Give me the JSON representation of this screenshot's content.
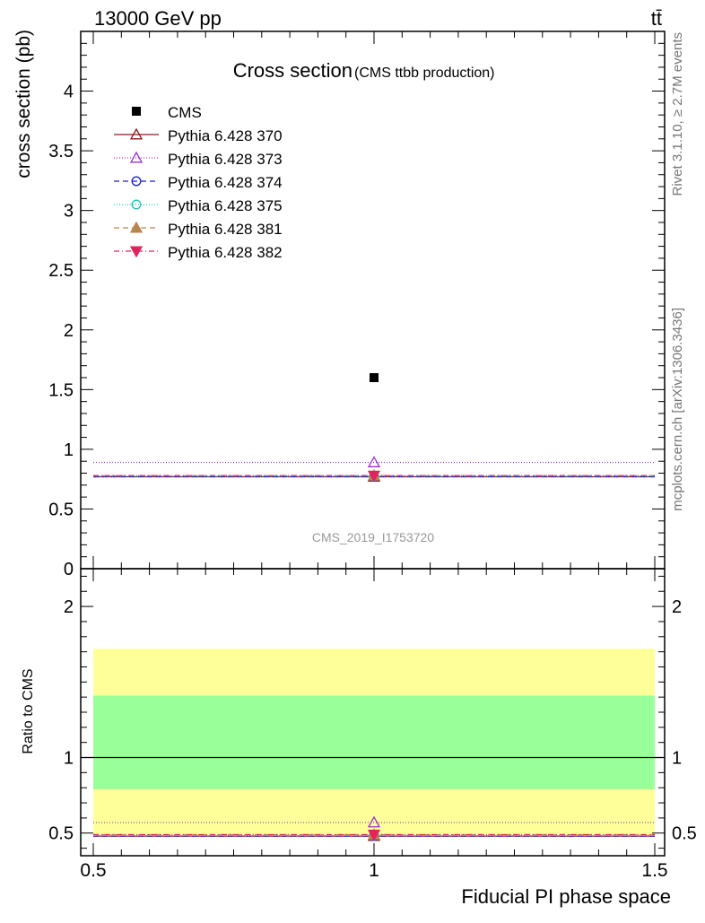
{
  "header": {
    "energy_label": "13000 GeV pp",
    "process_label": "tt̄"
  },
  "side_labels": {
    "rivet": "Rivet 3.1.10, ≥ 2.7M events",
    "mcplots": "mcplots.cern.ch [arXiv:1306.3436]"
  },
  "chart_data": [
    {
      "type": "scatter",
      "title": "Cross section",
      "subtitle": "(CMS ttbb production)",
      "ylabel": "cross section (pb)",
      "ylim": [
        0,
        4.5
      ],
      "xlim": [
        0.5,
        1.5
      ],
      "yticks": [
        0,
        0.5,
        1,
        1.5,
        2,
        2.5,
        3,
        3.5,
        4
      ],
      "ytick_labels": [
        "0",
        "0.5",
        "1",
        "1.5",
        "2",
        "2.5",
        "3",
        "3.5",
        "4"
      ],
      "watermark": "CMS_2019_I1753720",
      "legend_position": "top-left",
      "data_point": {
        "name": "CMS",
        "x": 1,
        "y": 1.6,
        "color": "#000000"
      },
      "series": [
        {
          "name": "Pythia 6.428 370",
          "x": [
            0.5,
            1.5
          ],
          "y": 0.77,
          "color": "#8b1a1a",
          "dash": "",
          "marker": "triangle-open"
        },
        {
          "name": "Pythia 6.428 373",
          "x": [
            0.5,
            1.5
          ],
          "y": 0.89,
          "color": "#9b30d0",
          "dash": "1,2",
          "marker": "triangle-open"
        },
        {
          "name": "Pythia 6.428 374",
          "x": [
            0.5,
            1.5
          ],
          "y": 0.77,
          "color": "#1f1fcc",
          "dash": "6,4",
          "marker": "circle-open"
        },
        {
          "name": "Pythia 6.428 375",
          "x": [
            0.5,
            1.5
          ],
          "y": 0.775,
          "color": "#1ac8b4",
          "dash": "1,2",
          "marker": "circle-open"
        },
        {
          "name": "Pythia 6.428 381",
          "x": [
            0.5,
            1.5
          ],
          "y": 0.78,
          "color": "#b8864b",
          "dash": "6,4",
          "marker": "triangle-filled"
        },
        {
          "name": "Pythia 6.428 382",
          "x": [
            0.5,
            1.5
          ],
          "y": 0.78,
          "color": "#e0245e",
          "dash": "6,3,1,3",
          "marker": "triangle-down-filled"
        }
      ]
    },
    {
      "type": "scatter",
      "ylabel": "Ratio to CMS",
      "xlabel": "Fiducial PI phase space",
      "ylim": [
        0.35,
        2.25
      ],
      "xlim": [
        0.5,
        1.5
      ],
      "yticks": [
        0.5,
        1,
        2
      ],
      "ytick_labels": [
        "0.5",
        "1",
        "2"
      ],
      "xticks": [
        0.5,
        1,
        1.5
      ],
      "xtick_labels": [
        "0.5",
        "1",
        "1.5"
      ],
      "bands": [
        {
          "name": "outer",
          "ymin": 0.49,
          "ymax": 1.72,
          "color": "#ffff99"
        },
        {
          "name": "inner",
          "ymin": 0.79,
          "ymax": 1.41,
          "color": "#99ff99"
        }
      ],
      "reference_line": 1,
      "series": [
        {
          "name": "Pythia 6.428 370",
          "y": 0.48,
          "color": "#8b1a1a",
          "dash": "",
          "marker": "triangle-open"
        },
        {
          "name": "Pythia 6.428 373",
          "y": 0.57,
          "color": "#9b30d0",
          "dash": "1,2",
          "marker": "triangle-open"
        },
        {
          "name": "Pythia 6.428 374",
          "y": 0.48,
          "color": "#1f1fcc",
          "dash": "6,4",
          "marker": "circle-open"
        },
        {
          "name": "Pythia 6.428 375",
          "y": 0.485,
          "color": "#1ac8b4",
          "dash": "1,2",
          "marker": "circle-open"
        },
        {
          "name": "Pythia 6.428 381",
          "y": 0.49,
          "color": "#b8864b",
          "dash": "6,4",
          "marker": "triangle-filled"
        },
        {
          "name": "Pythia 6.428 382",
          "y": 0.49,
          "color": "#e0245e",
          "dash": "6,3,1,3",
          "marker": "triangle-down-filled"
        }
      ]
    }
  ]
}
